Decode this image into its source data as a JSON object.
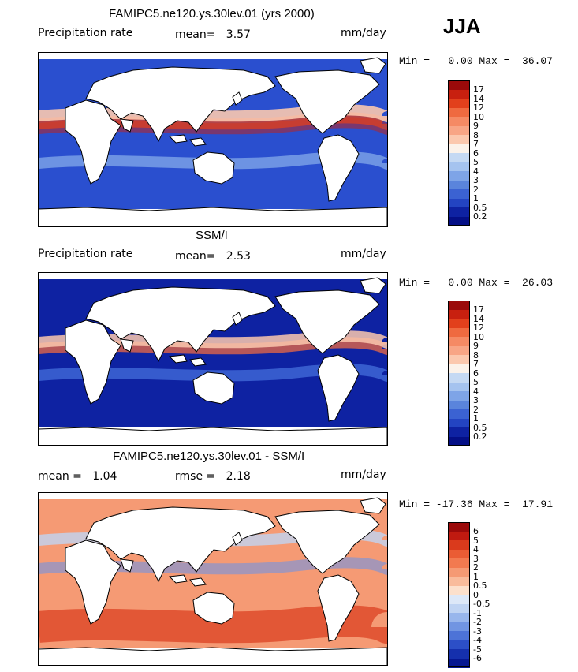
{
  "season": "JJA",
  "panels": [
    {
      "title": "FAMIPC5.ne120.ys.30lev.01 (yrs 2000)",
      "left_label": "Precipitation rate",
      "mid_label": "mean=   3.57",
      "right_label": "mm/day",
      "minmax": "Min =   0.00 Max =  36.07",
      "levels": [
        "17",
        "14",
        "12",
        "10",
        "9",
        "8",
        "7",
        "6",
        "5",
        "4",
        "3",
        "2",
        "1",
        "0.5",
        "0.2"
      ],
      "colors": [
        "#9b0a0a",
        "#c8200f",
        "#e2401c",
        "#ef6a40",
        "#f58a64",
        "#f8a585",
        "#fbc8ae",
        "#fbf2ea",
        "#c5d9f3",
        "#a5c3ef",
        "#7ea4e7",
        "#5a84dc",
        "#3b62d2",
        "#2344c2",
        "#0e22a2",
        "#040f86"
      ]
    },
    {
      "title": "SSM/I",
      "left_label": "Precipitation rate",
      "mid_label": "mean=   2.53",
      "right_label": "mm/day",
      "minmax": "Min =   0.00 Max =  26.03",
      "levels": [
        "17",
        "14",
        "12",
        "10",
        "9",
        "8",
        "7",
        "6",
        "5",
        "4",
        "3",
        "2",
        "1",
        "0.5",
        "0.2"
      ],
      "colors": [
        "#9b0a0a",
        "#c8200f",
        "#e2401c",
        "#ef6a40",
        "#f58a64",
        "#f8a585",
        "#fbc8ae",
        "#fbf2ea",
        "#c5d9f3",
        "#a5c3ef",
        "#7ea4e7",
        "#5a84dc",
        "#3b62d2",
        "#2344c2",
        "#0e22a2",
        "#040f86"
      ]
    },
    {
      "title": "FAMIPC5.ne120.ys.30lev.01 - SSM/I",
      "left_label": "mean =   1.04",
      "mid_label": "rmse =   2.18",
      "right_label": "mm/day",
      "minmax": "Min = -17.36 Max =  17.91",
      "levels": [
        "6",
        "5",
        "4",
        "3",
        "2",
        "1",
        "0.5",
        "0",
        "-0.5",
        "-1",
        "-2",
        "-3",
        "-4",
        "-5",
        "-6"
      ],
      "colors": [
        "#9b0a0a",
        "#c01a10",
        "#da3a1c",
        "#ea5c34",
        "#f27a50",
        "#f59a74",
        "#f9bb9b",
        "#fce0cc",
        "#dde8f8",
        "#c0d4f3",
        "#98b6ec",
        "#7195e2",
        "#4d73d7",
        "#2c4fc7",
        "#1530ad",
        "#061791"
      ]
    }
  ]
}
